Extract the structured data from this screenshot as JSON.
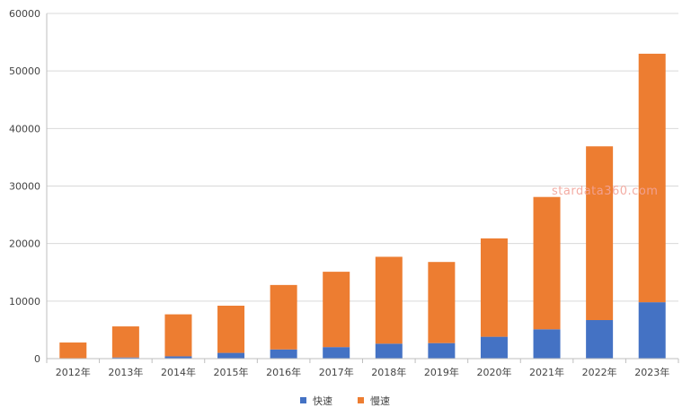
{
  "chart_data": {
    "type": "bar",
    "stacked": true,
    "categories": [
      "2012年",
      "2013年",
      "2014年",
      "2015年",
      "2016年",
      "2017年",
      "2018年",
      "2019年",
      "2020年",
      "2021年",
      "2022年",
      "2023年"
    ],
    "series": [
      {
        "name": "快速",
        "color": "#4472C4",
        "values": [
          0,
          200,
          400,
          1000,
          1600,
          2000,
          2600,
          2700,
          3800,
          5100,
          6700,
          9800
        ]
      },
      {
        "name": "慢速",
        "color": "#ED7D31",
        "values": [
          2800,
          5400,
          7300,
          8200,
          11200,
          13100,
          15100,
          14100,
          17100,
          23000,
          30200,
          43200
        ]
      }
    ],
    "ylim": [
      0,
      60000
    ],
    "yticks": [
      0,
      10000,
      20000,
      30000,
      40000,
      50000,
      60000
    ],
    "grid": true,
    "legend_position": "bottom"
  },
  "watermark": "stardata360.com"
}
